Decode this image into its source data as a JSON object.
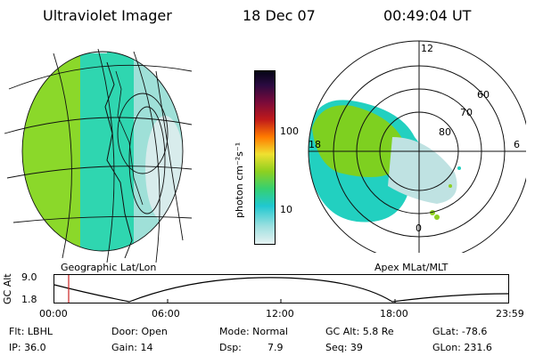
{
  "header": {
    "title": "Ultraviolet Imager",
    "date": "18 Dec 07",
    "time": "00:49:04 UT"
  },
  "colorbar": {
    "unit_label": "photon cm⁻²s⁻¹",
    "ticks": [
      "100",
      "10"
    ]
  },
  "left_map": {
    "caption": "Geographic Lat/Lon"
  },
  "polar_map": {
    "caption": "Apex MLat/MLT",
    "mlt_labels": {
      "top": "12",
      "left": "18",
      "right": "6",
      "bottom": "0"
    },
    "lat_labels": [
      "60",
      "70",
      "80"
    ]
  },
  "altitude_strip": {
    "ylabel": "GC Alt",
    "y_ticks": [
      "9.0",
      "1.8"
    ],
    "x_ticks": [
      "00:00",
      "06:00",
      "12:00",
      "18:00",
      "23:59"
    ],
    "marker_time": "00:49"
  },
  "info": {
    "row1": {
      "flt": "Flt: LBHL",
      "door": "Door: Open",
      "mode": "Mode: Normal",
      "gcalt": "GC Alt: 5.8 Re",
      "glat": "GLat: -78.6"
    },
    "row2": {
      "ip": "IP: 36.0",
      "gain": "Gain: 14",
      "dsp_label": "Dsp:",
      "dsp_value": "7.9",
      "seq": "Seq: 39",
      "glon": "GLon: 231.6"
    }
  },
  "colors": {
    "background": "#ffffff",
    "marker": "#cc2222",
    "emission_low": "#b8e0e0",
    "emission_mid": "#22d6c8",
    "emission_high": "#7ed020"
  }
}
